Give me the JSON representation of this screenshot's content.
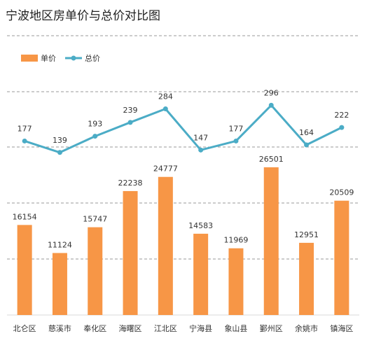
{
  "chart_data": {
    "type": "bar",
    "title": "宁波地区房单价与总价对比图",
    "categories": [
      "北仑区",
      "慈溪市",
      "奉化区",
      "海曙区",
      "江北区",
      "宁海县",
      "象山县",
      "鄞州区",
      "余姚市",
      "镇海区"
    ],
    "series": [
      {
        "name": "单价",
        "type": "bar",
        "color": "#F79646",
        "values": [
          16154,
          11124,
          15747,
          22238,
          24777,
          14583,
          11969,
          26501,
          12951,
          20509
        ]
      },
      {
        "name": "总价",
        "type": "line",
        "color": "#4BACC6",
        "values": [
          177,
          139,
          193,
          239,
          284,
          147,
          177,
          296,
          164,
          222
        ]
      }
    ],
    "legend_position": "top-left",
    "grid": "dashed-horizontal",
    "xlabel": "",
    "ylabel": ""
  }
}
